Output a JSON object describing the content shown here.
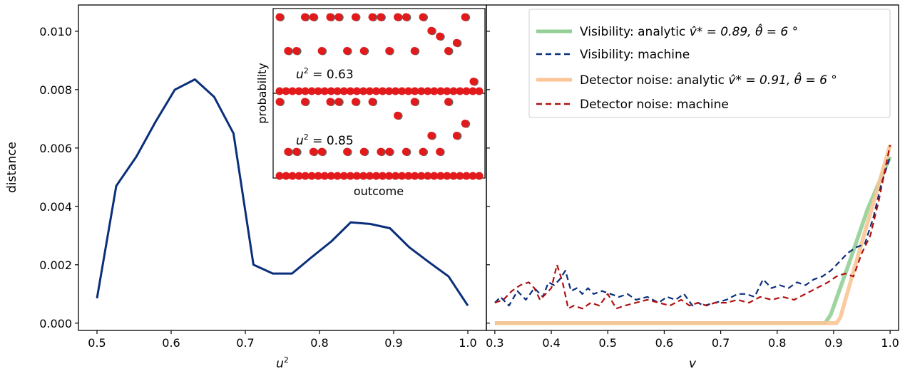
{
  "chart_data": [
    {
      "type": "line",
      "xlabel": "u",
      "xlabel_sup": "2",
      "ylabel": "distance",
      "xlim": [
        0.475,
        1.025
      ],
      "ylim": [
        -0.00025,
        0.0109
      ],
      "xticks": [
        "0.5",
        "0.6",
        "0.7",
        "0.8",
        "0.9",
        "1.0"
      ],
      "yticks": [
        "0.000",
        "0.002",
        "0.004",
        "0.006",
        "0.008",
        "0.010"
      ],
      "color": "#0a2f7a",
      "series": [
        {
          "x": [
            0.5,
            0.526,
            0.553,
            0.579,
            0.605,
            0.632,
            0.658,
            0.684,
            0.711,
            0.737,
            0.763,
            0.789,
            0.816,
            0.842,
            0.868,
            0.895,
            0.921,
            0.947,
            0.974,
            1.0
          ],
          "y": [
            0.00085,
            0.0047,
            0.0057,
            0.0069,
            0.008,
            0.00835,
            0.00775,
            0.0065,
            0.002,
            0.0017,
            0.0017,
            0.00225,
            0.0028,
            0.00345,
            0.0034,
            0.00325,
            0.0026,
            0.0021,
            0.0016,
            0.0006
          ]
        }
      ],
      "inset": {
        "xlabel": "outcome",
        "ylabel": "probability",
        "panels": [
          {
            "annotation_prefix": "u",
            "annotation_sup": "2",
            "annotation_value": " = 0.63",
            "points": [
              [
                1,
                0.92
              ],
              [
                2,
                0.5
              ],
              [
                3,
                0.5
              ],
              [
                4,
                0.92
              ],
              [
                5,
                0.92
              ],
              [
                6,
                0.5
              ],
              [
                7,
                0.92
              ],
              [
                8,
                0.92
              ],
              [
                9,
                0.5
              ],
              [
                10,
                0.92
              ],
              [
                11,
                0.5
              ],
              [
                12,
                0.92
              ],
              [
                13,
                0.92
              ],
              [
                14,
                0.5
              ],
              [
                15,
                0.92
              ],
              [
                16,
                0.92
              ],
              [
                17,
                0.5
              ],
              [
                18,
                0.92
              ],
              [
                19,
                0.75
              ],
              [
                20,
                0.68
              ],
              [
                21,
                0.5
              ],
              [
                22,
                0.6
              ],
              [
                23,
                0.92
              ],
              [
                24,
                0.12
              ]
            ],
            "baseline_points": 32
          },
          {
            "annotation_prefix": "u",
            "annotation_sup": "2",
            "annotation_value": " = 0.85",
            "points": [
              [
                1,
                0.92
              ],
              [
                2,
                0.3
              ],
              [
                3,
                0.3
              ],
              [
                4,
                0.92
              ],
              [
                5,
                0.3
              ],
              [
                6,
                0.3
              ],
              [
                7,
                0.92
              ],
              [
                8,
                0.92
              ],
              [
                9,
                0.3
              ],
              [
                10,
                0.92
              ],
              [
                11,
                0.3
              ],
              [
                12,
                0.92
              ],
              [
                13,
                0.3
              ],
              [
                14,
                0.3
              ],
              [
                15,
                0.75
              ],
              [
                16,
                0.3
              ],
              [
                17,
                0.92
              ],
              [
                18,
                0.3
              ],
              [
                19,
                0.5
              ],
              [
                20,
                0.3
              ],
              [
                21,
                0.92
              ],
              [
                22,
                0.5
              ],
              [
                23,
                0.65
              ]
            ],
            "baseline_points": 32
          }
        ]
      }
    },
    {
      "type": "line",
      "xlabel": "v",
      "xlim": [
        0.285,
        1.015
      ],
      "ylim": [
        -0.00025,
        0.0109
      ],
      "xticks": [
        "0.3",
        "0.4",
        "0.5",
        "0.6",
        "0.7",
        "0.8",
        "0.9",
        "1.0"
      ],
      "legend_position": "top-right",
      "series": [
        {
          "name_text": "Visibility: analytic ",
          "name_math": "v̂* = 0.89, θ̂ = 6 °",
          "color": "#94cf95",
          "style": "solid",
          "x": [
            0.3,
            0.885,
            0.895,
            0.93,
            0.96,
            1.0
          ],
          "y": [
            0,
            0,
            0.0003,
            0.0022,
            0.0039,
            0.0057
          ]
        },
        {
          "name_text": "Visibility: machine",
          "color": "#0a2f7a",
          "style": "dashed",
          "x": [
            0.3,
            0.31,
            0.325,
            0.34,
            0.355,
            0.37,
            0.385,
            0.395,
            0.405,
            0.415,
            0.425,
            0.435,
            0.445,
            0.455,
            0.465,
            0.475,
            0.49,
            0.505,
            0.52,
            0.535,
            0.55,
            0.57,
            0.59,
            0.605,
            0.62,
            0.635,
            0.65,
            0.66,
            0.67,
            0.69,
            0.71,
            0.73,
            0.745,
            0.76,
            0.775,
            0.79,
            0.805,
            0.82,
            0.835,
            0.85,
            0.865,
            0.88,
            0.895,
            0.91,
            0.925,
            0.94,
            0.955,
            0.97,
            0.985,
            1.0
          ],
          "y": [
            0.0007,
            0.0009,
            0.0006,
            0.0011,
            0.0008,
            0.0012,
            0.0009,
            0.0014,
            0.0013,
            0.0015,
            0.0018,
            0.0011,
            0.0012,
            0.001,
            0.0012,
            0.001,
            0.0011,
            0.001,
            0.0009,
            0.001,
            0.0008,
            0.0009,
            0.0007,
            0.0009,
            0.0008,
            0.001,
            0.0006,
            0.0007,
            0.0006,
            0.0007,
            0.0008,
            0.001,
            0.001,
            0.0009,
            0.0015,
            0.0012,
            0.0013,
            0.0012,
            0.0014,
            0.0013,
            0.0015,
            0.0016,
            0.0018,
            0.0021,
            0.0024,
            0.0026,
            0.0027,
            0.0036,
            0.0048,
            0.0057
          ]
        },
        {
          "name_text": "Detector noise: analytic ",
          "name_math": "v̂* = 0.91, θ̂ = 6 °",
          "color": "#fbc596",
          "style": "solid",
          "x": [
            0.3,
            0.905,
            0.912,
            0.94,
            0.97,
            1.0
          ],
          "y": [
            0,
            0,
            0.0002,
            0.0021,
            0.0041,
            0.0061
          ]
        },
        {
          "name_text": "Detector noise: machine",
          "color": "#b01010",
          "style": "dashed",
          "x": [
            0.3,
            0.315,
            0.33,
            0.345,
            0.36,
            0.37,
            0.38,
            0.39,
            0.4,
            0.41,
            0.42,
            0.43,
            0.44,
            0.455,
            0.47,
            0.485,
            0.5,
            0.515,
            0.53,
            0.55,
            0.57,
            0.59,
            0.61,
            0.63,
            0.645,
            0.66,
            0.675,
            0.69,
            0.71,
            0.73,
            0.75,
            0.77,
            0.79,
            0.81,
            0.83,
            0.85,
            0.87,
            0.89,
            0.905,
            0.92,
            0.935,
            0.95,
            0.965,
            0.98,
            1.0
          ],
          "y": [
            0.0007,
            0.0008,
            0.0011,
            0.0013,
            0.0014,
            0.0012,
            0.0008,
            0.001,
            0.0012,
            0.002,
            0.0014,
            0.0005,
            0.0006,
            0.0005,
            0.0007,
            0.0006,
            0.001,
            0.0005,
            0.0006,
            0.0007,
            0.0008,
            0.0007,
            0.0006,
            0.0008,
            0.0006,
            0.0007,
            0.0006,
            0.0007,
            0.0007,
            0.0008,
            0.0007,
            0.0009,
            0.0008,
            0.0009,
            0.0008,
            0.001,
            0.0012,
            0.0014,
            0.0016,
            0.0017,
            0.0016,
            0.0024,
            0.003,
            0.0042,
            0.0061
          ]
        }
      ]
    }
  ]
}
